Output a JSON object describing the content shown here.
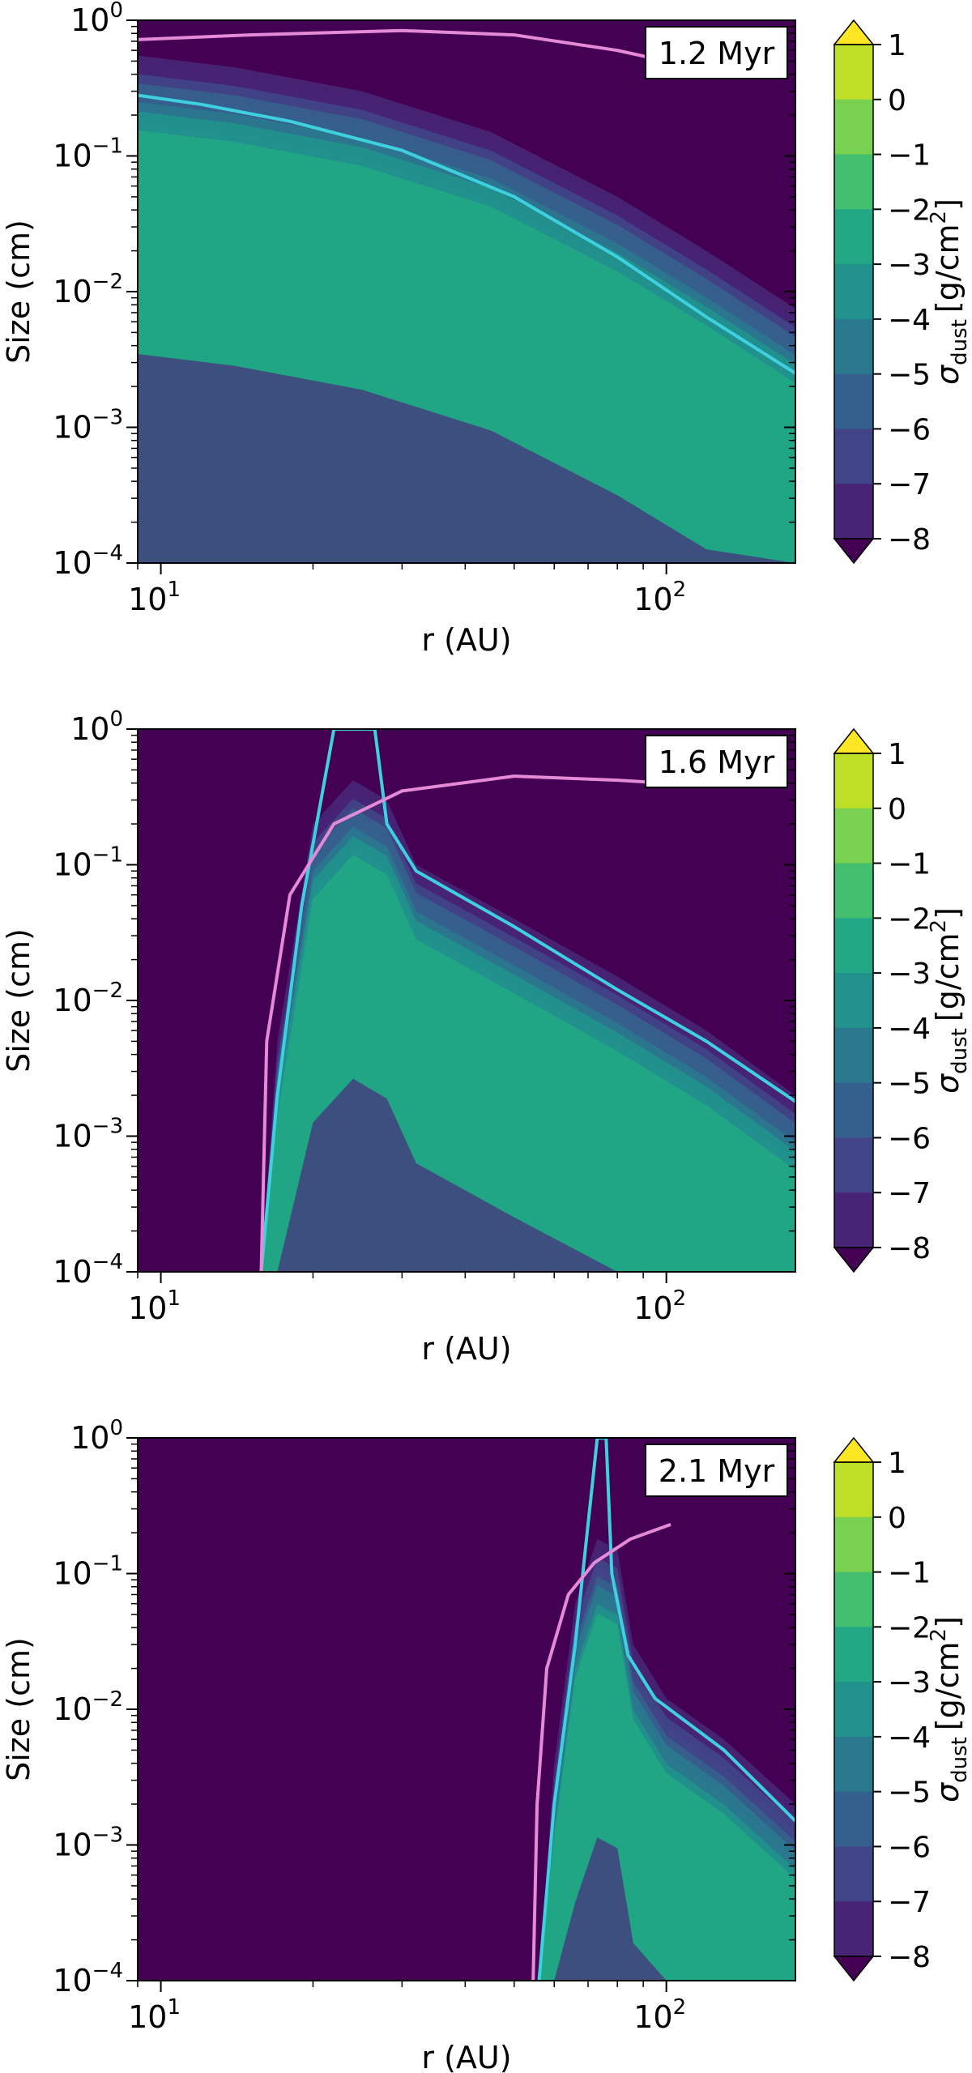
{
  "chart_data": [
    {
      "type": "heatmap",
      "time_label": "1.2 Myr",
      "xlabel": "r (AU)",
      "ylabel": "Size (cm)",
      "xscale": "log",
      "yscale": "log",
      "xlim": [
        9,
        180
      ],
      "ylim": [
        0.0001,
        1
      ],
      "x_ticks": [
        {
          "value": 10,
          "base": "10",
          "exp": "1"
        },
        {
          "value": 100,
          "base": "10",
          "exp": "2"
        }
      ],
      "y_ticks": [
        {
          "value": 1,
          "base": "10",
          "exp": "0"
        },
        {
          "value": 0.1,
          "base": "10",
          "exp": "−1"
        },
        {
          "value": 0.01,
          "base": "10",
          "exp": "−2"
        },
        {
          "value": 0.001,
          "base": "10",
          "exp": "−3"
        },
        {
          "value": 0.0001,
          "base": "10",
          "exp": "−4"
        }
      ],
      "colorbar": {
        "label_base": "σ",
        "label_sub": "dust",
        "label_units": "[g/cm",
        "label_sup": "2",
        "label_close": "]",
        "ticks": [
          "1",
          "0",
          "−1",
          "−2",
          "−3",
          "−4",
          "−5",
          "−6",
          "−7",
          "−8"
        ],
        "range": [
          -8,
          1
        ],
        "extend": "both"
      },
      "background_color": "#440154",
      "cyan_curve": [
        [
          9,
          0.28
        ],
        [
          12,
          0.24
        ],
        [
          18,
          0.18
        ],
        [
          30,
          0.11
        ],
        [
          50,
          0.05
        ],
        [
          80,
          0.018
        ],
        [
          120,
          0.0065
        ],
        [
          180,
          0.0025
        ]
      ],
      "pink_curve": [
        [
          9,
          0.72
        ],
        [
          15,
          0.78
        ],
        [
          30,
          0.84
        ],
        [
          50,
          0.78
        ],
        [
          80,
          0.6
        ],
        [
          100,
          0.5
        ]
      ],
      "dust_band": [
        [
          9,
          0.55
        ],
        [
          14,
          0.45
        ],
        [
          25,
          0.3
        ],
        [
          45,
          0.15
        ],
        [
          80,
          0.05
        ],
        [
          120,
          0.02
        ],
        [
          180,
          0.0075
        ]
      ],
      "dust_peak_level": -2.5
    },
    {
      "type": "heatmap",
      "time_label": "1.6 Myr",
      "xlabel": "r (AU)",
      "ylabel": "Size (cm)",
      "xscale": "log",
      "yscale": "log",
      "xlim": [
        9,
        180
      ],
      "ylim": [
        0.0001,
        1
      ],
      "x_ticks": [
        {
          "value": 10,
          "base": "10",
          "exp": "1"
        },
        {
          "value": 100,
          "base": "10",
          "exp": "2"
        }
      ],
      "y_ticks": [
        {
          "value": 1,
          "base": "10",
          "exp": "0"
        },
        {
          "value": 0.1,
          "base": "10",
          "exp": "−1"
        },
        {
          "value": 0.01,
          "base": "10",
          "exp": "−2"
        },
        {
          "value": 0.001,
          "base": "10",
          "exp": "−3"
        },
        {
          "value": 0.0001,
          "base": "10",
          "exp": "−4"
        }
      ],
      "colorbar": {
        "label_base": "σ",
        "label_sub": "dust",
        "label_units": "[g/cm",
        "label_sup": "2",
        "label_close": "]",
        "ticks": [
          "1",
          "0",
          "−1",
          "−2",
          "−3",
          "−4",
          "−5",
          "−6",
          "−7",
          "−8"
        ],
        "range": [
          -8,
          1
        ],
        "extend": "both"
      },
      "background_color": "#440154",
      "cyan_curve": [
        [
          15.8,
          0.0001
        ],
        [
          17,
          0.002
        ],
        [
          19,
          0.05
        ],
        [
          22,
          1
        ],
        [
          26.5,
          1
        ],
        [
          28,
          0.2
        ],
        [
          32,
          0.09
        ],
        [
          50,
          0.035
        ],
        [
          80,
          0.012
        ],
        [
          120,
          0.005
        ],
        [
          180,
          0.0018
        ]
      ],
      "pink_curve": [
        [
          15.8,
          0.0001
        ],
        [
          16.2,
          0.005
        ],
        [
          18,
          0.06
        ],
        [
          22,
          0.2
        ],
        [
          30,
          0.35
        ],
        [
          50,
          0.45
        ],
        [
          80,
          0.42
        ],
        [
          100,
          0.4
        ]
      ],
      "dust_band": [
        [
          15.8,
          0.0001
        ],
        [
          17,
          0.005
        ],
        [
          20,
          0.2
        ],
        [
          24,
          0.42
        ],
        [
          28,
          0.3
        ],
        [
          32,
          0.1
        ],
        [
          50,
          0.04
        ],
        [
          80,
          0.015
        ],
        [
          120,
          0.006
        ],
        [
          180,
          0.002
        ]
      ],
      "dust_peak_level": -2.5
    },
    {
      "type": "heatmap",
      "time_label": "2.1 Myr",
      "xlabel": "r (AU)",
      "ylabel": "Size (cm)",
      "xscale": "log",
      "yscale": "log",
      "xlim": [
        9,
        180
      ],
      "ylim": [
        0.0001,
        1
      ],
      "x_ticks": [
        {
          "value": 10,
          "base": "10",
          "exp": "1"
        },
        {
          "value": 100,
          "base": "10",
          "exp": "2"
        }
      ],
      "y_ticks": [
        {
          "value": 1,
          "base": "10",
          "exp": "0"
        },
        {
          "value": 0.1,
          "base": "10",
          "exp": "−1"
        },
        {
          "value": 0.01,
          "base": "10",
          "exp": "−2"
        },
        {
          "value": 0.001,
          "base": "10",
          "exp": "−3"
        },
        {
          "value": 0.0001,
          "base": "10",
          "exp": "−4"
        }
      ],
      "colorbar": {
        "label_base": "σ",
        "label_sub": "dust",
        "label_units": "[g/cm",
        "label_sup": "2",
        "label_close": "]",
        "ticks": [
          "1",
          "0",
          "−1",
          "−2",
          "−3",
          "−4",
          "−5",
          "−6",
          "−7",
          "−8"
        ],
        "range": [
          -8,
          1
        ],
        "extend": "both"
      },
      "background_color": "#440154",
      "cyan_curve": [
        [
          56,
          0.0001
        ],
        [
          60,
          0.002
        ],
        [
          66,
          0.03
        ],
        [
          73,
          1
        ],
        [
          76,
          1
        ],
        [
          78,
          0.1
        ],
        [
          84,
          0.025
        ],
        [
          95,
          0.012
        ],
        [
          130,
          0.005
        ],
        [
          180,
          0.0015
        ]
      ],
      "pink_curve": [
        [
          54.5,
          0.0001
        ],
        [
          55.5,
          0.002
        ],
        [
          58,
          0.02
        ],
        [
          64,
          0.07
        ],
        [
          72,
          0.12
        ],
        [
          85,
          0.18
        ],
        [
          102,
          0.23
        ]
      ],
      "dust_band": [
        [
          56,
          0.0001
        ],
        [
          60,
          0.004
        ],
        [
          66,
          0.06
        ],
        [
          73,
          0.18
        ],
        [
          80,
          0.15
        ],
        [
          86,
          0.03
        ],
        [
          100,
          0.012
        ],
        [
          130,
          0.006
        ],
        [
          180,
          0.002
        ]
      ],
      "dust_peak_level": -3
    }
  ]
}
